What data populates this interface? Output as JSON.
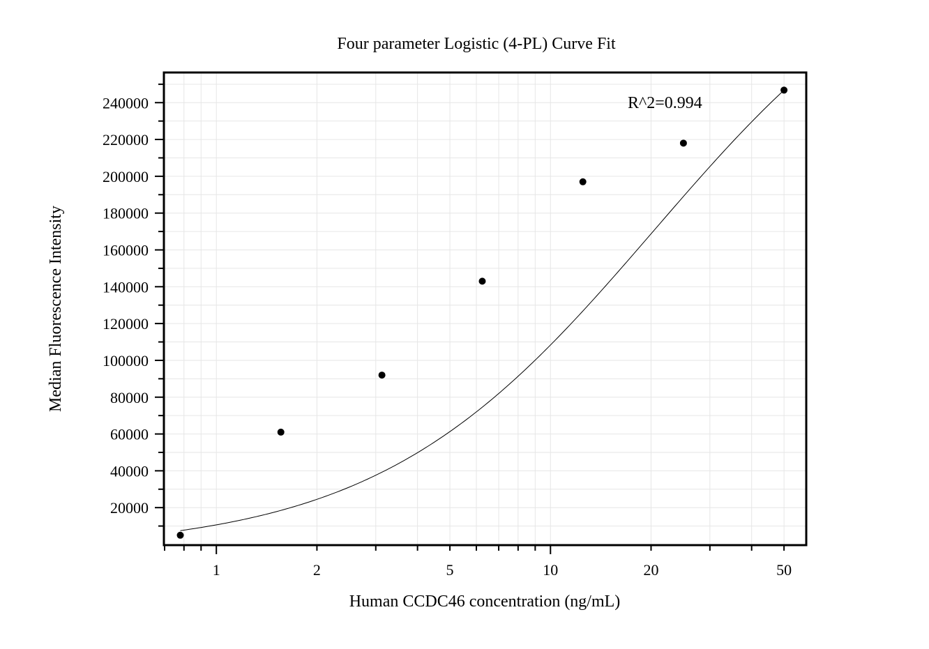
{
  "chart_data": {
    "type": "scatter",
    "title": "Four parameter Logistic (4-PL) Curve Fit",
    "xlabel": "Human CCDC46 concentration (ng/mL)",
    "ylabel": "Median Fluorescence Intensity",
    "x_scale": "log",
    "xlim": [
      0.7,
      58
    ],
    "ylim": [
      0,
      256000
    ],
    "x_ticks": [
      1,
      2,
      5,
      10,
      20,
      50
    ],
    "x_tick_labels": [
      "1",
      "2",
      "5",
      "10",
      "20",
      "50"
    ],
    "y_ticks": [
      20000,
      40000,
      60000,
      80000,
      100000,
      120000,
      140000,
      160000,
      180000,
      200000,
      220000,
      240000
    ],
    "y_tick_labels": [
      "20000",
      "40000",
      "60000",
      "80000",
      "100000",
      "120000",
      "140000",
      "160000",
      "180000",
      "200000",
      "220000",
      "240000"
    ],
    "grid": true,
    "legend": "none",
    "series": [
      {
        "kind": "points",
        "x": [
          0.78,
          1.56,
          3.13,
          6.25,
          12.5,
          25,
          50
        ],
        "y": [
          5000,
          61000,
          92000,
          143000,
          197000,
          218000,
          246800
        ]
      },
      {
        "kind": "fit-curve",
        "model": "4PL",
        "x_range": [
          0.78,
          50
        ],
        "y_range": [
          7500,
          246800
        ]
      }
    ],
    "annotations": [
      {
        "text": "R^2=0.994",
        "x": 17.5,
        "y": 239000
      }
    ],
    "colors": {
      "points": "#000000",
      "curve": "#000000",
      "grid": "#e6e6e6",
      "frame": "#000000"
    }
  }
}
